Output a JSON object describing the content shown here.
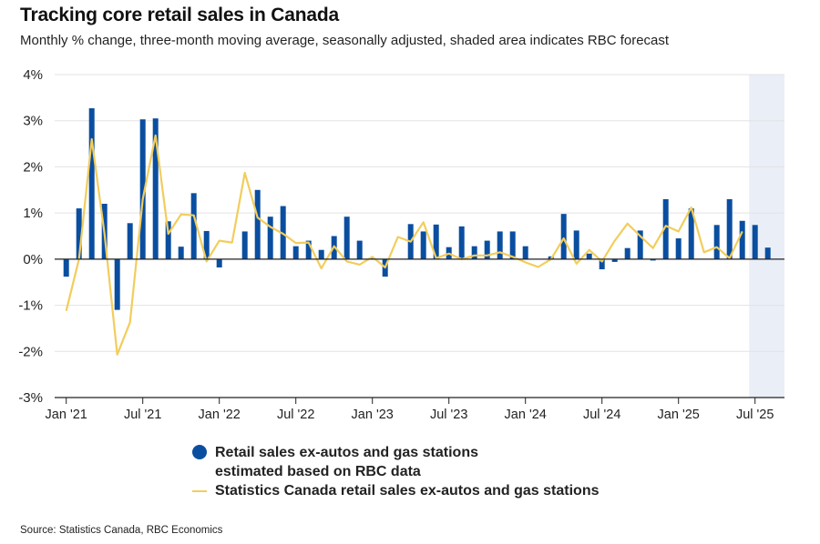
{
  "chart_data": {
    "type": "bar",
    "title": "Tracking core retail sales in Canada",
    "subtitle": "Monthly % change, three-month moving average, seasonally adjusted, shaded area indicates RBC forecast",
    "xlabel": "",
    "ylabel": "",
    "ylim": [
      -3,
      4
    ],
    "yticks": [
      4,
      3,
      2,
      1,
      0,
      -1,
      -2,
      -3
    ],
    "ytick_labels": [
      "4%",
      "3%",
      "2%",
      "1%",
      "0%",
      "-1%",
      "-2%",
      "-3%"
    ],
    "grid": true,
    "x_start": "Jan 2021",
    "xtick_labels": [
      "Jan '21",
      "Jul '21",
      "Jan '22",
      "Jul '22",
      "Jan '23",
      "Jul '23",
      "Jan '24",
      "Jul '24",
      "Jan '25",
      "Jul '25"
    ],
    "xtick_month_index": [
      0,
      6,
      12,
      18,
      24,
      30,
      36,
      42,
      48,
      54
    ],
    "forecast_shading": {
      "from": "Jul 2025",
      "to": "Aug 2025",
      "color": "#e9eef7"
    },
    "categories": [
      "Jan '21",
      "Feb '21",
      "Mar '21",
      "Apr '21",
      "May '21",
      "Jun '21",
      "Jul '21",
      "Aug '21",
      "Sep '21",
      "Oct '21",
      "Nov '21",
      "Dec '21",
      "Jan '22",
      "Feb '22",
      "Mar '22",
      "Apr '22",
      "May '22",
      "Jun '22",
      "Jul '22",
      "Aug '22",
      "Sep '22",
      "Oct '22",
      "Nov '22",
      "Dec '22",
      "Jan '23",
      "Feb '23",
      "Mar '23",
      "Apr '23",
      "May '23",
      "Jun '23",
      "Jul '23",
      "Aug '23",
      "Sep '23",
      "Oct '23",
      "Nov '23",
      "Dec '23",
      "Jan '24",
      "Feb '24",
      "Mar '24",
      "Apr '24",
      "May '24",
      "Jun '24",
      "Jul '24",
      "Aug '24",
      "Sep '24",
      "Oct '24",
      "Nov '24",
      "Dec '24",
      "Jan '25",
      "Feb '25",
      "Mar '25",
      "Apr '25",
      "May '25",
      "Jun '25",
      "Jul '25",
      "Aug '25"
    ],
    "series": [
      {
        "name": "Retail sales ex-autos and gas stations estimated based on RBC data",
        "type": "bar",
        "color": "#0a4ea0",
        "values": [
          -0.38,
          1.1,
          3.27,
          1.2,
          -1.1,
          0.78,
          3.03,
          3.05,
          0.82,
          0.27,
          1.43,
          0.61,
          -0.18,
          0.0,
          0.6,
          1.5,
          0.92,
          1.15,
          0.28,
          0.4,
          0.2,
          0.5,
          0.92,
          0.4,
          0.03,
          -0.38,
          0.0,
          0.76,
          0.6,
          0.75,
          0.26,
          0.71,
          0.28,
          0.4,
          0.6,
          0.6,
          0.28,
          0.0,
          0.06,
          0.98,
          0.62,
          0.12,
          -0.22,
          -0.06,
          0.24,
          0.62,
          -0.03,
          1.3,
          0.45,
          1.1,
          0.0,
          0.74,
          1.3,
          0.83,
          0.74,
          0.25
        ]
      },
      {
        "name": "Statistics Canada retail sales ex-autos and gas stations",
        "type": "line",
        "color": "#f2cd5c",
        "values": [
          -1.12,
          0.0,
          2.6,
          0.55,
          -2.07,
          -1.37,
          1.3,
          2.68,
          0.55,
          0.97,
          0.95,
          -0.05,
          0.4,
          0.36,
          1.87,
          0.9,
          0.7,
          0.55,
          0.35,
          0.36,
          -0.2,
          0.28,
          -0.05,
          -0.12,
          0.05,
          -0.18,
          0.48,
          0.38,
          0.8,
          0.02,
          0.12,
          0.0,
          0.08,
          0.08,
          0.15,
          0.05,
          -0.07,
          -0.17,
          0.0,
          0.45,
          -0.1,
          0.2,
          -0.05,
          0.4,
          0.77,
          0.5,
          0.24,
          0.72,
          0.6,
          1.12,
          0.15,
          0.26,
          0.02,
          0.6,
          null,
          null
        ]
      }
    ],
    "legend": "bottom-center"
  },
  "legend": {
    "bar_label_line1": "Retail sales ex-autos and gas stations",
    "bar_label_line2": "estimated based on RBC data",
    "line_label": "Statistics Canada retail sales ex-autos and gas stations"
  },
  "source": "Source: Statistics Canada, RBC Economics"
}
